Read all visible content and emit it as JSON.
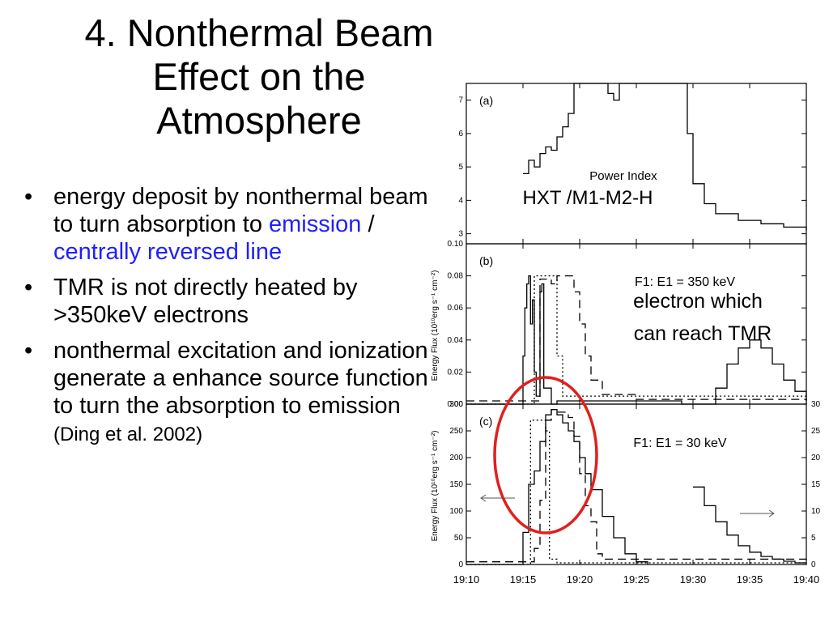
{
  "slide": {
    "title_lines": [
      "4. Nonthermal Beam",
      "Effect on the",
      "Atmosphere"
    ],
    "bullets": [
      {
        "parts": [
          {
            "text": "energy deposit by nonthermal beam to turn absorption to ",
            "style": "normal"
          },
          {
            "text": "emission",
            "style": "blue"
          },
          {
            "text": " / ",
            "style": "normal"
          },
          {
            "text": "centrally reversed line",
            "style": "blue"
          }
        ]
      },
      {
        "parts": [
          {
            "text": "TMR is not directly heated by >350keV electrons",
            "style": "normal"
          }
        ]
      },
      {
        "parts": [
          {
            "text": "nonthermal excitation and ionization generate a enhance source function to turn the absorption to emission ",
            "style": "normal"
          },
          {
            "text": "(Ding et al. 2002)",
            "style": "small"
          }
        ]
      }
    ],
    "bullet_glyph": "•"
  },
  "chart_data": [
    {
      "type": "line",
      "panel": "(a)",
      "annotation": "Power Index",
      "overlay_label": "HXT /M1-M2-H",
      "x_unit": "time",
      "xlim": [
        "19:10",
        "19:40"
      ],
      "ylim": [
        2.7,
        7.5
      ],
      "yticks": [
        3,
        4,
        5,
        6,
        7
      ],
      "series": [
        {
          "style": "solid",
          "points": [
            [
              "19:15",
              4.8
            ],
            [
              "19:15:30",
              5.2
            ],
            [
              "19:16",
              5.0
            ],
            [
              "19:16:30",
              5.4
            ],
            [
              "19:17",
              5.6
            ],
            [
              "19:17:30",
              5.5
            ],
            [
              "19:18",
              5.9
            ],
            [
              "19:18:30",
              6.2
            ],
            [
              "19:19",
              6.6
            ],
            [
              "19:19:30",
              7.5
            ],
            [
              "19:20",
              7.5
            ],
            [
              "19:22",
              7.5
            ],
            [
              "19:22:30",
              7.2
            ],
            [
              "19:23",
              7.0
            ],
            [
              "19:23:30",
              7.5
            ],
            [
              "19:29",
              7.5
            ],
            [
              "19:29:30",
              6.0
            ],
            [
              "19:30",
              4.5
            ],
            [
              "19:31",
              3.9
            ],
            [
              "19:32",
              3.6
            ],
            [
              "19:34",
              3.4
            ],
            [
              "19:36",
              3.3
            ],
            [
              "19:38",
              3.2
            ],
            [
              "19:40",
              3.1
            ]
          ]
        }
      ]
    },
    {
      "type": "line",
      "panel": "(b)",
      "annotation": "F1: E1 = 350 keV",
      "overlay_label_lines": [
        "electron which",
        "can reach TMR"
      ],
      "ylabel": "Energy Flux (10¹⁰erg s⁻¹ cm⁻²)",
      "xlim": [
        "19:10",
        "19:40"
      ],
      "ylim": [
        0,
        0.1
      ],
      "yticks": [
        "0.00",
        "0.02",
        "0.04",
        "0.06",
        "0.08",
        "0.10"
      ],
      "series": [
        {
          "style": "solid",
          "points": [
            [
              "19:10",
              0.0
            ],
            [
              "19:14:45",
              0.0
            ],
            [
              "19:15",
              0.03
            ],
            [
              "19:15:10",
              0.06
            ],
            [
              "19:15:20",
              0.075
            ],
            [
              "19:15:30",
              0.08
            ],
            [
              "19:15:40",
              0.05
            ],
            [
              "19:15:50",
              0.065
            ],
            [
              "19:16",
              0.02
            ],
            [
              "19:16:10",
              0.005
            ],
            [
              "19:16:30",
              0.07
            ],
            [
              "19:16:40",
              0.075
            ],
            [
              "19:16:50",
              0.01
            ],
            [
              "19:17:30",
              0.0
            ],
            [
              "19:18",
              0.002
            ],
            [
              "19:29",
              0.0
            ],
            [
              "19:31",
              0.0
            ],
            [
              "19:32",
              0.01
            ],
            [
              "19:33",
              0.025
            ],
            [
              "19:34",
              0.035
            ],
            [
              "19:35",
              0.04
            ],
            [
              "19:36",
              0.035
            ],
            [
              "19:37",
              0.025
            ],
            [
              "19:38",
              0.015
            ],
            [
              "19:39",
              0.008
            ],
            [
              "19:40",
              0.002
            ]
          ]
        },
        {
          "style": "dashed",
          "points": [
            [
              "19:10",
              0.002
            ],
            [
              "19:15",
              0.002
            ],
            [
              "19:16:30",
              0.078
            ],
            [
              "19:17",
              0.078
            ],
            [
              "19:17:30",
              0.075
            ],
            [
              "19:18",
              0.08
            ],
            [
              "19:19",
              0.08
            ],
            [
              "19:19:30",
              0.07
            ],
            [
              "19:20",
              0.05
            ],
            [
              "19:20:30",
              0.03
            ],
            [
              "19:21",
              0.015
            ],
            [
              "19:22",
              0.006
            ],
            [
              "19:25",
              0.003
            ],
            [
              "19:40",
              0.002
            ]
          ]
        },
        {
          "style": "dotted",
          "points": [
            [
              "19:10",
              0.0
            ],
            [
              "19:15:40",
              0.0
            ],
            [
              "19:16",
              0.08
            ],
            [
              "19:17:30",
              0.08
            ],
            [
              "19:18",
              0.03
            ],
            [
              "19:18:30",
              0.005
            ],
            [
              "19:40",
              0.0
            ]
          ]
        }
      ]
    },
    {
      "type": "line",
      "panel": "(c)",
      "annotation": "F1: E1 = 30 keV",
      "ylabel": "Energy Flux (10¹⁰erg s⁻¹ cm⁻²)",
      "xlabel_ticks": [
        "19:10",
        "19:15",
        "19:20",
        "19:25",
        "19:30",
        "19:35",
        "19:40"
      ],
      "xlim": [
        "19:10",
        "19:40"
      ],
      "ylim": [
        0,
        300
      ],
      "yticks": [
        0,
        50,
        100,
        150,
        200,
        250,
        300
      ],
      "y2lim": [
        0,
        30
      ],
      "y2ticks": [
        0,
        5,
        10,
        15,
        20,
        25,
        30
      ],
      "series": [
        {
          "style": "solid",
          "axis": "left",
          "points": [
            [
              "19:10",
              0
            ],
            [
              "19:14",
              0
            ],
            [
              "19:15",
              60
            ],
            [
              "19:15:30",
              150
            ],
            [
              "19:16",
              175
            ],
            [
              "19:16:30",
              230
            ],
            [
              "19:17",
              280
            ],
            [
              "19:17:30",
              290
            ],
            [
              "19:18",
              280
            ],
            [
              "19:18:30",
              265
            ],
            [
              "19:19",
              250
            ],
            [
              "19:19:30",
              230
            ],
            [
              "19:20",
              200
            ],
            [
              "19:20:30",
              170
            ],
            [
              "19:21",
              140
            ],
            [
              "19:22",
              90
            ],
            [
              "19:23",
              50
            ],
            [
              "19:24",
              20
            ],
            [
              "19:25",
              5
            ],
            [
              "19:26",
              0
            ]
          ]
        },
        {
          "style": "dashed",
          "axis": "left",
          "points": [
            [
              "19:10",
              5
            ],
            [
              "19:15",
              5
            ],
            [
              "19:16",
              30
            ],
            [
              "19:16:30",
              120
            ],
            [
              "19:17",
              270
            ],
            [
              "19:17:30",
              290
            ],
            [
              "19:18",
              285
            ],
            [
              "19:19",
              275
            ],
            [
              "19:19:30",
              240
            ],
            [
              "19:20",
              170
            ],
            [
              "19:20:30",
              110
            ],
            [
              "19:21",
              80
            ],
            [
              "19:21:30",
              20
            ],
            [
              "19:22",
              10
            ],
            [
              "19:40",
              5
            ]
          ]
        },
        {
          "style": "dotted",
          "axis": "left",
          "points": [
            [
              "19:10",
              0
            ],
            [
              "19:15:20",
              0
            ],
            [
              "19:15:40",
              270
            ],
            [
              "19:16:40",
              270
            ],
            [
              "19:17",
              250
            ],
            [
              "19:17:20",
              10
            ],
            [
              "19:18",
              3
            ],
            [
              "19:40",
              0
            ]
          ]
        },
        {
          "style": "solid",
          "axis": "right",
          "points": [
            [
              "19:30",
              14.5
            ],
            [
              "19:31",
              11
            ],
            [
              "19:32",
              8
            ],
            [
              "19:33",
              5.5
            ],
            [
              "19:34",
              3.5
            ],
            [
              "19:35",
              2.3
            ],
            [
              "19:36",
              1.5
            ],
            [
              "19:37",
              1.0
            ],
            [
              "19:38",
              0.6
            ],
            [
              "19:39",
              0.3
            ],
            [
              "19:40",
              0.1
            ]
          ]
        }
      ]
    }
  ],
  "highlight": {
    "shape": "ellipse",
    "color": "#e0201e"
  },
  "colors": {
    "text": "#000000",
    "accent_blue": "#1f1fff",
    "highlight_red": "#e0201e"
  }
}
